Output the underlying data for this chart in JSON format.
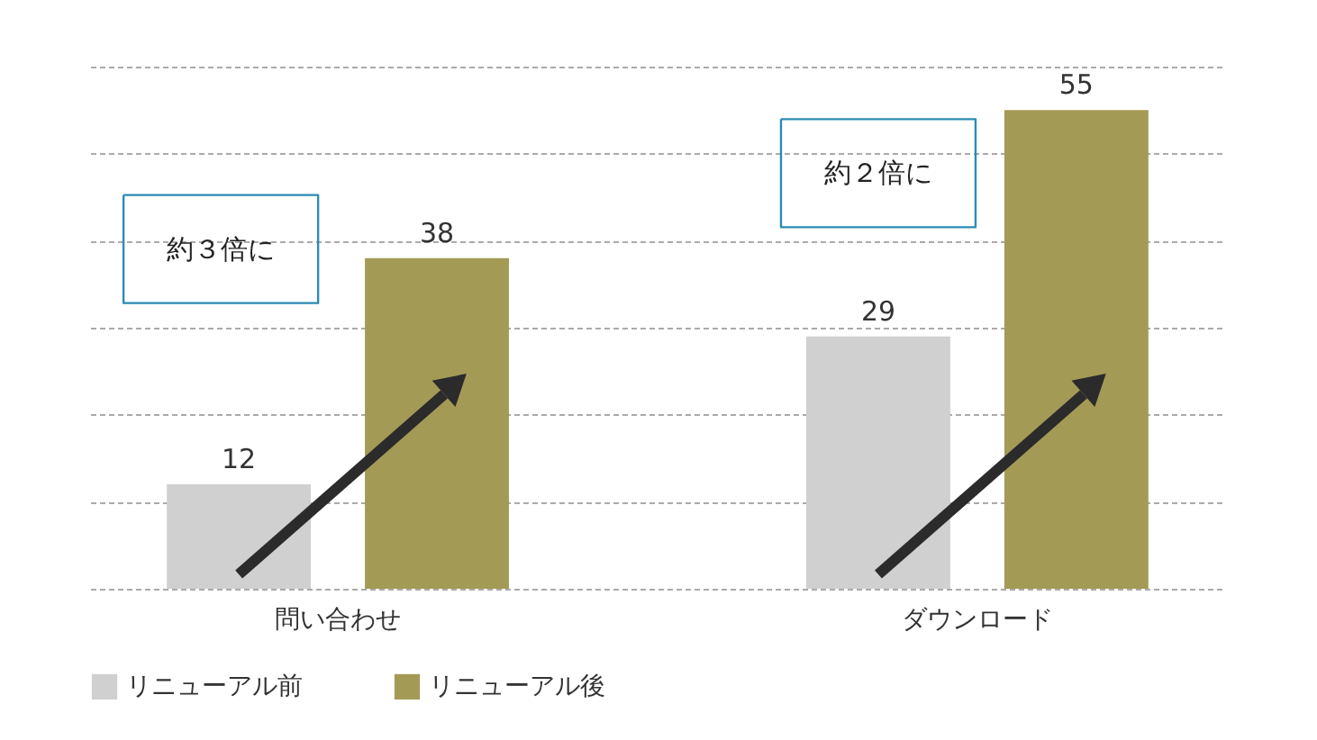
{
  "chart_data": {
    "type": "bar",
    "categories": [
      "問い合わせ",
      "ダウンロード"
    ],
    "series": [
      {
        "name": "リニューアル前",
        "color": "#d0d0d0",
        "values": [
          12,
          29
        ]
      },
      {
        "name": "リニューアル後",
        "color": "#a39a56",
        "values": [
          38,
          55
        ]
      }
    ],
    "ylim": [
      0,
      60
    ],
    "yticks": [
      {
        "value": 0,
        "label": null
      },
      {
        "value": 10,
        "label": null
      },
      {
        "value": 20,
        "label": null
      },
      {
        "value": 30,
        "label": null
      },
      {
        "value": 40,
        "label": null
      },
      {
        "value": 50,
        "label": null
      },
      {
        "value": 60,
        "label": null
      }
    ],
    "tick_labels": "x",
    "grid": "y",
    "data_labels": true,
    "legend": "bottom",
    "annotations": [
      "約３倍に",
      "約２倍に"
    ]
  }
}
